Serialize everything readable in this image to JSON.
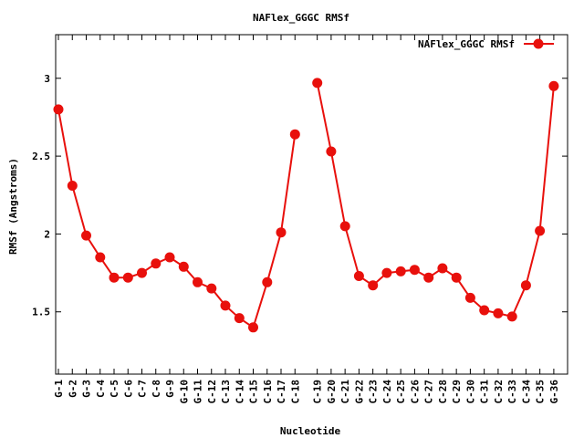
{
  "chart_data": {
    "type": "line",
    "title": "NAFlex_GGGC RMSf",
    "xlabel": "Nucleotide",
    "ylabel": "RMSf (Angstroms)",
    "ylim": [
      1.1,
      3.28
    ],
    "yticks": [
      1.5,
      2,
      2.5,
      3
    ],
    "ytick_labels": [
      "1.5",
      "2",
      "2.5",
      "3"
    ],
    "grid": false,
    "legend": "top-right",
    "color": "#e8100c",
    "segments": [
      {
        "categories": [
          "G-1",
          "G-2",
          "G-3",
          "C-4",
          "C-5",
          "C-6",
          "C-7",
          "C-8",
          "G-9",
          "G-10",
          "G-11",
          "C-12",
          "C-13",
          "C-14",
          "C-15",
          "C-16",
          "C-17",
          "C-18"
        ],
        "values": [
          2.8,
          2.31,
          1.99,
          1.85,
          1.72,
          1.72,
          1.75,
          1.81,
          1.85,
          1.79,
          1.69,
          1.65,
          1.54,
          1.46,
          1.4,
          1.69,
          2.01,
          2.64
        ]
      },
      {
        "categories": [
          "C-19",
          "G-20",
          "C-21",
          "G-22",
          "C-23",
          "C-24",
          "C-25",
          "C-26",
          "C-27",
          "C-28",
          "C-29",
          "C-30",
          "C-31",
          "C-32",
          "C-33",
          "C-34",
          "C-35",
          "G-36"
        ],
        "values": [
          2.97,
          2.53,
          2.05,
          1.73,
          1.67,
          1.75,
          1.76,
          1.77,
          1.72,
          1.78,
          1.72,
          1.59,
          1.51,
          1.49,
          1.47,
          1.67,
          2.02,
          2.95
        ]
      }
    ],
    "series": [
      {
        "name": "NAFlex_GGGC RMSf"
      }
    ]
  }
}
